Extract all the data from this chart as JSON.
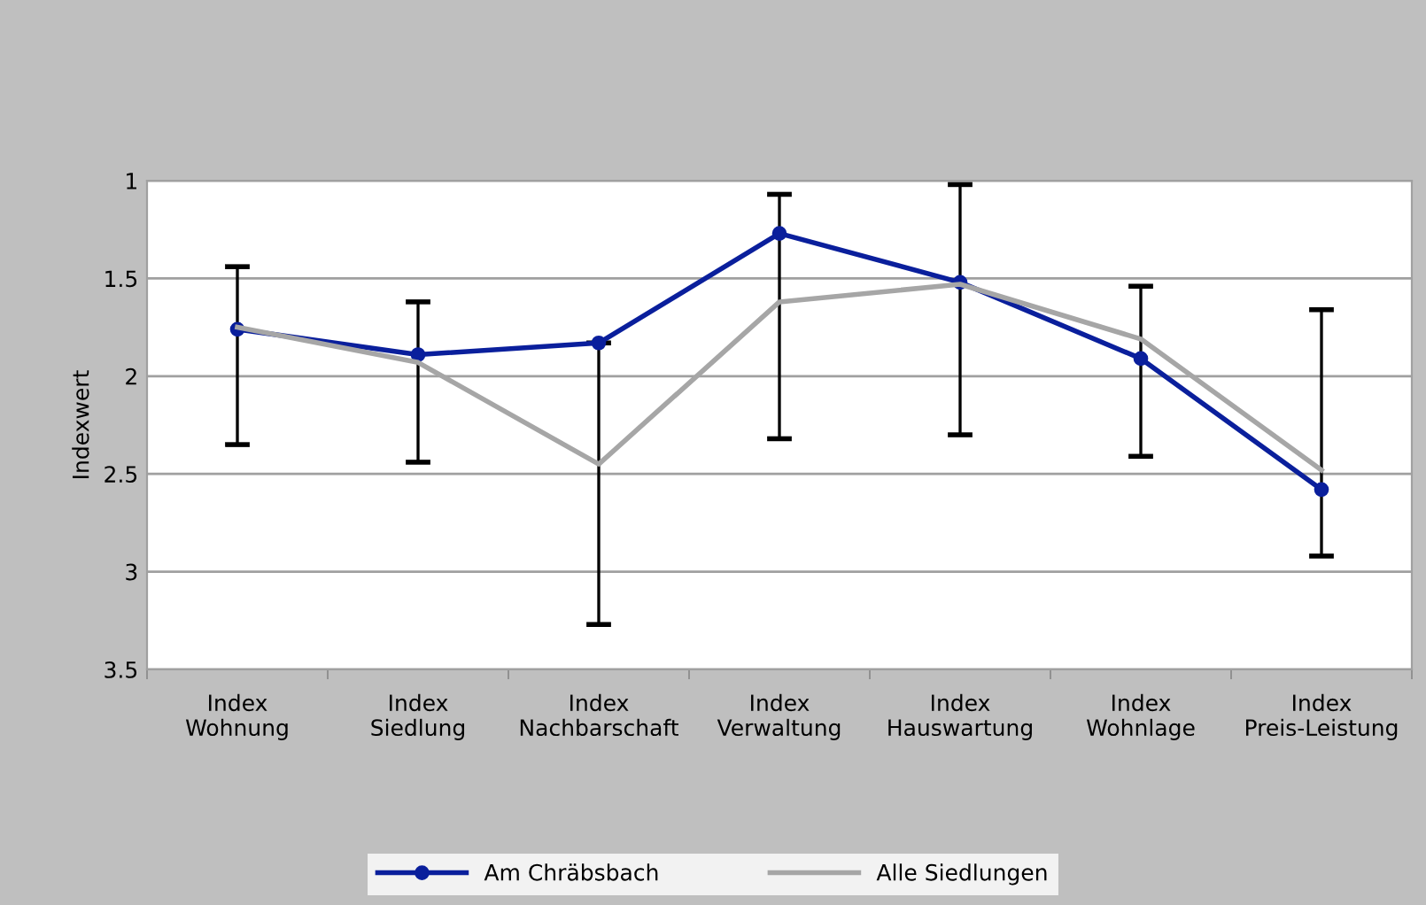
{
  "chart_data": {
    "type": "line",
    "ylabel": "Indexwert",
    "categories": [
      "Index\nWohnung",
      "Index\nSiedlung",
      "Index\nNachbarschaft",
      "Index\nVerwaltung",
      "Index\nHauswartung",
      "Index\nWohnlage",
      "Index\nPreis-Leistung"
    ],
    "series": [
      {
        "name": "Am Chräbsbach",
        "color": "#0a1f9c",
        "marker": "circle",
        "values": [
          1.76,
          1.89,
          1.83,
          1.27,
          1.52,
          1.91,
          2.58
        ],
        "errors": [
          [
            1.44,
            2.35
          ],
          [
            1.62,
            2.44
          ],
          [
            1.83,
            3.27
          ],
          [
            1.07,
            2.32
          ],
          [
            1.02,
            2.3
          ],
          [
            1.54,
            2.41
          ],
          [
            1.66,
            2.92
          ]
        ]
      },
      {
        "name": "Alle Siedlungen",
        "color": "#a6a6a6",
        "marker": "none",
        "values": [
          1.75,
          1.93,
          2.45,
          1.62,
          1.53,
          1.81,
          2.48
        ]
      }
    ],
    "ylim": [
      3.5,
      1
    ],
    "yticks": [
      1,
      1.5,
      2,
      2.5,
      3,
      3.5
    ],
    "grid": "y",
    "legend": "bottom",
    "line_style": "solid"
  }
}
